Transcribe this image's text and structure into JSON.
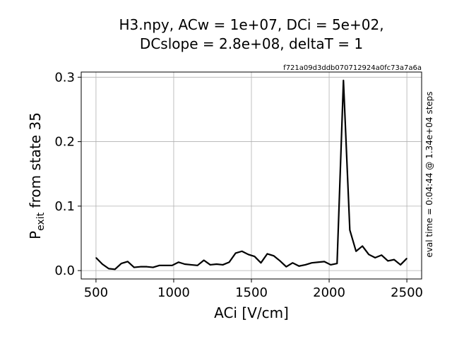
{
  "chart_data": {
    "type": "line",
    "title_line1": "H3.npy, ACw = 1e+07,  DCi = 5e+02,",
    "title_line2": "DCslope = 2.8e+08,  deltaT = 1",
    "hash_label": "f721a09d3ddb070712924a0fc73a7a6a",
    "eval_time_label": "eval time = 0:04:44 @ 1.34e+04 steps",
    "xlabel": "ACi [V/cm]",
    "ylabel_main": "P",
    "ylabel_sub": "exit",
    "ylabel_rest": " from state 35",
    "xlim": [
      405,
      2595
    ],
    "ylim": [
      -0.013,
      0.308
    ],
    "xticks": [
      500,
      1000,
      1500,
      2000,
      2500
    ],
    "xtick_labels": [
      "500",
      "1000",
      "1500",
      "2000",
      "2500"
    ],
    "yticks": [
      0.0,
      0.1,
      0.2,
      0.3
    ],
    "ytick_labels": [
      "0.0",
      "0.1",
      "0.2",
      "0.3"
    ],
    "grid": true,
    "line_color": "#000000",
    "x": [
      500,
      541,
      582,
      622,
      663,
      704,
      745,
      786,
      827,
      867,
      908,
      949,
      990,
      1031,
      1071,
      1112,
      1153,
      1194,
      1235,
      1276,
      1316,
      1357,
      1398,
      1439,
      1480,
      1520,
      1561,
      1602,
      1643,
      1684,
      1724,
      1765,
      1806,
      1847,
      1888,
      1929,
      1969,
      2010,
      2051,
      2092,
      2133,
      2173,
      2214,
      2255,
      2296,
      2337,
      2378,
      2418,
      2459,
      2500
    ],
    "y": [
      0.02,
      0.01,
      0.003,
      0.002,
      0.011,
      0.014,
      0.005,
      0.006,
      0.006,
      0.005,
      0.008,
      0.008,
      0.008,
      0.013,
      0.01,
      0.009,
      0.008,
      0.016,
      0.009,
      0.01,
      0.009,
      0.013,
      0.027,
      0.03,
      0.025,
      0.022,
      0.012,
      0.026,
      0.023,
      0.015,
      0.006,
      0.012,
      0.007,
      0.009,
      0.012,
      0.013,
      0.014,
      0.009,
      0.011,
      0.295,
      0.063,
      0.03,
      0.038,
      0.025,
      0.02,
      0.024,
      0.015,
      0.017,
      0.009,
      0.019
    ]
  }
}
